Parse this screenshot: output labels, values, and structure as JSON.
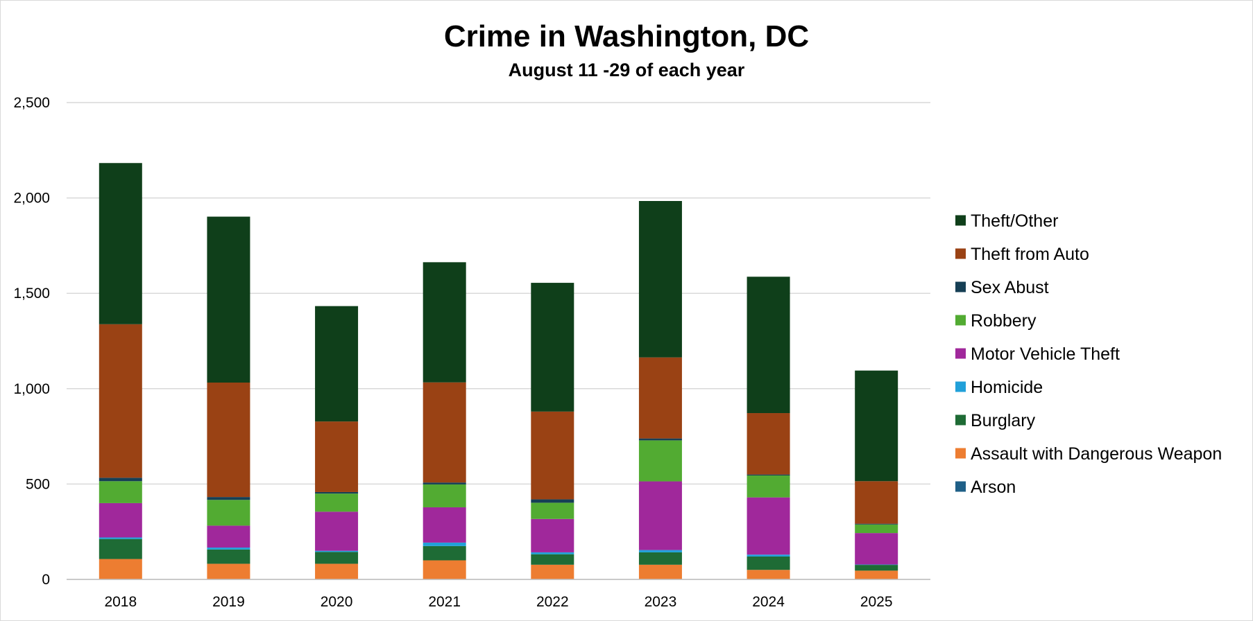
{
  "chart_data": {
    "type": "bar",
    "stacked": true,
    "title": "Crime in Washington, DC",
    "subtitle": "August 11 -29 of each year",
    "xlabel": "",
    "ylabel": "",
    "ylim": [
      0,
      2500
    ],
    "yticks": [
      0,
      500,
      1000,
      1500,
      2000,
      2500
    ],
    "ytick_labels": [
      "0",
      "500",
      "1,000",
      "1,500",
      "2,000",
      "2,500"
    ],
    "grid": true,
    "legend_position": "right",
    "categories": [
      "2018",
      "2019",
      "2020",
      "2021",
      "2022",
      "2023",
      "2024",
      "2025"
    ],
    "series": [
      {
        "name": "Arson",
        "color": "#1f5f87",
        "values": [
          2,
          2,
          2,
          2,
          2,
          2,
          2,
          1
        ]
      },
      {
        "name": "Assault with Dangerous Weapon",
        "color": "#ed7d31",
        "values": [
          105,
          80,
          80,
          98,
          75,
          75,
          48,
          45
        ]
      },
      {
        "name": "Burglary",
        "color": "#1e6b35",
        "values": [
          105,
          75,
          62,
          75,
          55,
          65,
          70,
          30
        ]
      },
      {
        "name": "Homicide",
        "color": "#21a0d9",
        "values": [
          8,
          10,
          6,
          18,
          10,
          12,
          10,
          2
        ]
      },
      {
        "name": "Motor Vehicle Theft",
        "color": "#a0289b",
        "values": [
          180,
          115,
          205,
          185,
          175,
          360,
          300,
          165
        ]
      },
      {
        "name": "Robbery",
        "color": "#52ab32",
        "values": [
          115,
          135,
          95,
          120,
          85,
          215,
          115,
          45
        ]
      },
      {
        "name": "Sex Abust",
        "color": "#163f55",
        "values": [
          18,
          15,
          8,
          10,
          18,
          10,
          5,
          4
        ]
      },
      {
        "name": "Theft from Auto",
        "color": "#9a4214",
        "values": [
          805,
          600,
          370,
          525,
          460,
          425,
          322,
          223
        ]
      },
      {
        "name": "Theft/Other",
        "color": "#0f3f1a",
        "values": [
          845,
          870,
          605,
          630,
          675,
          820,
          715,
          580
        ]
      }
    ],
    "legend_order": [
      "Theft/Other",
      "Theft from Auto",
      "Sex Abust",
      "Robbery",
      "Motor Vehicle Theft",
      "Homicide",
      "Burglary",
      "Assault with Dangerous Weapon",
      "Arson"
    ]
  }
}
